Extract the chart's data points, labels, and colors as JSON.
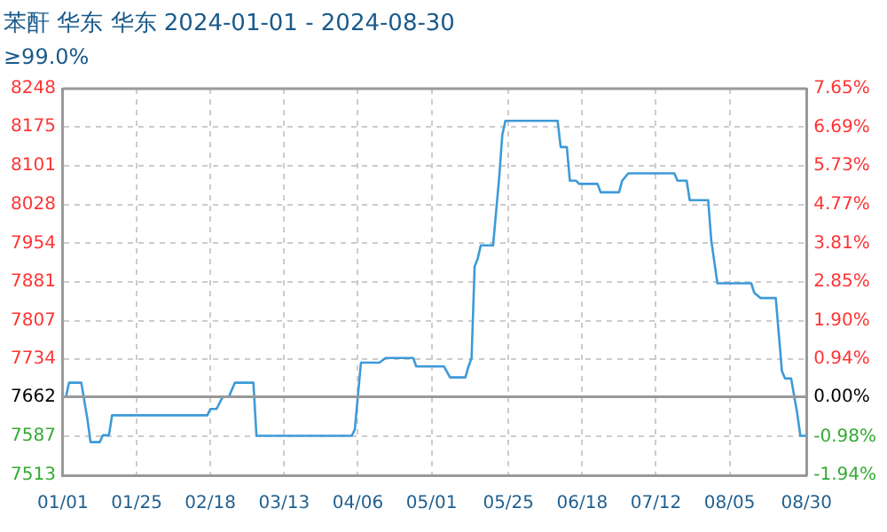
{
  "chart_data": {
    "type": "line",
    "title": "苯酐 华东 华东 2024-01-01 - 2024-08-30",
    "subtitle": "≥99.0%",
    "x": [
      "2024-01-01",
      "2024-01-02",
      "2024-01-03",
      "2024-01-07",
      "2024-01-09",
      "2024-01-10",
      "2024-01-13",
      "2024-01-14",
      "2024-01-16",
      "2024-01-17",
      "2024-02-17",
      "2024-02-18",
      "2024-02-20",
      "2024-02-22",
      "2024-02-24",
      "2024-02-26",
      "2024-03-03",
      "2024-03-04",
      "2024-04-04",
      "2024-04-05",
      "2024-04-07",
      "2024-04-13",
      "2024-04-15",
      "2024-04-24",
      "2024-04-25",
      "2024-05-04",
      "2024-05-06",
      "2024-05-11",
      "2024-05-12",
      "2024-05-13",
      "2024-05-14",
      "2024-05-15",
      "2024-05-16",
      "2024-05-20",
      "2024-05-22",
      "2024-05-23",
      "2024-05-24",
      "2024-06-10",
      "2024-06-11",
      "2024-06-13",
      "2024-06-14",
      "2024-06-16",
      "2024-06-17",
      "2024-06-23",
      "2024-06-24",
      "2024-06-30",
      "2024-07-01",
      "2024-07-03",
      "2024-07-18",
      "2024-07-19",
      "2024-07-22",
      "2024-07-23",
      "2024-07-29",
      "2024-07-30",
      "2024-08-01",
      "2024-08-12",
      "2024-08-13",
      "2024-08-15",
      "2024-08-20",
      "2024-08-22",
      "2024-08-23",
      "2024-08-25",
      "2024-08-27",
      "2024-08-28",
      "2024-08-30"
    ],
    "series": [
      {
        "color": "#3d9ad8",
        "values": [
          7662,
          7662,
          7689,
          7689,
          7619,
          7576,
          7576,
          7589,
          7589,
          7627,
          7627,
          7639,
          7639,
          7662,
          7662,
          7689,
          7689,
          7588,
          7588,
          7600,
          7727,
          7727,
          7736,
          7736,
          7720,
          7720,
          7699,
          7699,
          7720,
          7736,
          7910,
          7925,
          7950,
          7950,
          8080,
          8160,
          8187,
          8187,
          8137,
          8137,
          8073,
          8073,
          8067,
          8067,
          8051,
          8051,
          8073,
          8087,
          8087,
          8073,
          8073,
          8036,
          8036,
          7960,
          7878,
          7878,
          7860,
          7850,
          7850,
          7711,
          7697,
          7697,
          7630,
          7588,
          7588
        ]
      }
    ],
    "xlim": [
      "2024-01-01",
      "2024-08-30"
    ],
    "xticks": [
      {
        "value": "2024-01-01",
        "label": "01/01"
      },
      {
        "value": "2024-01-25",
        "label": "01/25"
      },
      {
        "value": "2024-02-18",
        "label": "02/18"
      },
      {
        "value": "2024-03-13",
        "label": "03/13"
      },
      {
        "value": "2024-04-06",
        "label": "04/06"
      },
      {
        "value": "2024-04-30",
        "label": "05/01"
      },
      {
        "value": "2024-05-25",
        "label": "05/25"
      },
      {
        "value": "2024-06-18",
        "label": "06/18"
      },
      {
        "value": "2024-07-12",
        "label": "07/12"
      },
      {
        "value": "2024-08-05",
        "label": "08/05"
      },
      {
        "value": "2024-08-30",
        "label": "08/30"
      }
    ],
    "ylim": [
      7513,
      8248
    ],
    "yticks": [
      7513,
      7587,
      7662,
      7734,
      7807,
      7881,
      7954,
      8028,
      8101,
      8175,
      8248
    ],
    "y2lim": [
      -1.94,
      7.65
    ],
    "y2ticks": [
      {
        "value": -1.94,
        "label": "-1.94%"
      },
      {
        "value": -0.98,
        "label": "-0.98%"
      },
      {
        "value": 0,
        "label": "0.00%"
      },
      {
        "value": 0.94,
        "label": "0.94%"
      },
      {
        "value": 1.9,
        "label": "1.90%"
      },
      {
        "value": 2.85,
        "label": "2.85%"
      },
      {
        "value": 3.81,
        "label": "3.81%"
      },
      {
        "value": 4.77,
        "label": "4.77%"
      },
      {
        "value": 5.73,
        "label": "5.73%"
      },
      {
        "value": 6.69,
        "label": "6.69%"
      },
      {
        "value": 7.65,
        "label": "7.65%"
      }
    ],
    "ref_lines": [
      {
        "axis": "y",
        "value": 7662,
        "color": "#999999"
      }
    ],
    "grid": true,
    "legend": false,
    "marker": "none",
    "line_style": "solid"
  }
}
